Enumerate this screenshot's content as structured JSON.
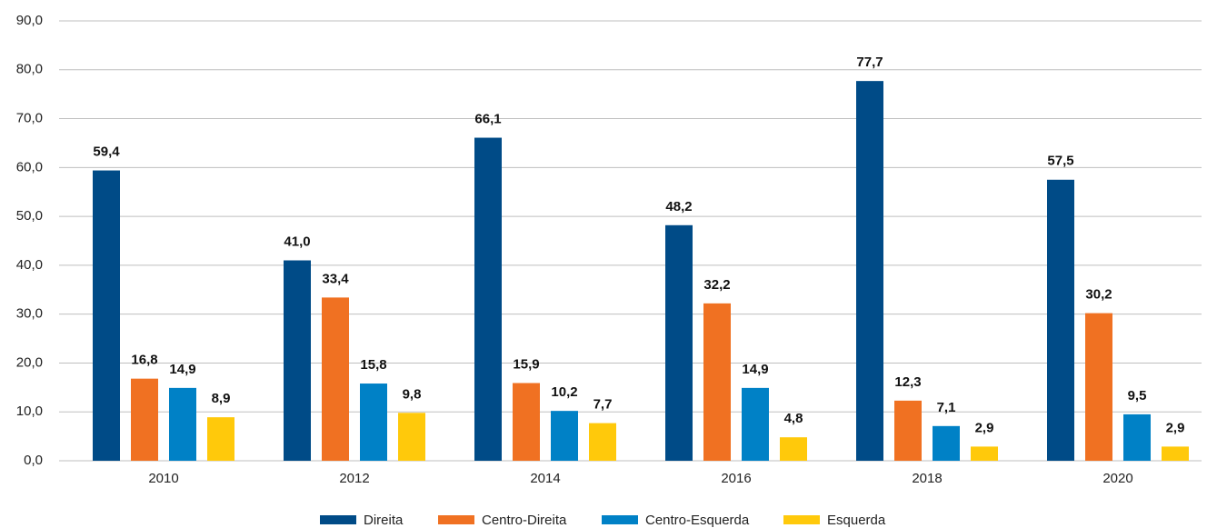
{
  "chart_data": {
    "type": "bar",
    "categories": [
      "2010",
      "2012",
      "2014",
      "2016",
      "2018",
      "2020"
    ],
    "series": [
      {
        "name": "Direita",
        "color": "#004b87",
        "values": [
          59.4,
          41.0,
          66.1,
          48.2,
          77.7,
          57.5
        ],
        "value_labels": [
          "59,4",
          "41,0",
          "66,1",
          "48,2",
          "77,7",
          "57,5"
        ]
      },
      {
        "name": "Centro-Direita",
        "color": "#f07122",
        "values": [
          16.8,
          33.4,
          15.9,
          32.2,
          12.3,
          30.2
        ],
        "value_labels": [
          "16,8",
          "33,4",
          "15,9",
          "32,2",
          "12,3",
          "30,2"
        ]
      },
      {
        "name": "Centro-Esquerda",
        "color": "#0081c6",
        "values": [
          14.9,
          15.8,
          10.2,
          14.9,
          7.1,
          9.5
        ],
        "value_labels": [
          "14,9",
          "15,8",
          "10,2",
          "14,9",
          "7,1",
          "9,5"
        ]
      },
      {
        "name": "Esquerda",
        "color": "#ffc90b",
        "values": [
          8.9,
          9.8,
          7.7,
          4.8,
          2.9,
          2.9
        ],
        "value_labels": [
          "8,9",
          "9,8",
          "7,7",
          "4,8",
          "2,9",
          "2,9"
        ]
      }
    ],
    "ylim": [
      0,
      90
    ],
    "yticks": [
      {
        "value": 0,
        "label": "0,0"
      },
      {
        "value": 10,
        "label": "10,0"
      },
      {
        "value": 20,
        "label": "20,0"
      },
      {
        "value": 30,
        "label": "30,0"
      },
      {
        "value": 40,
        "label": "40,0"
      },
      {
        "value": 50,
        "label": "50,0"
      },
      {
        "value": 60,
        "label": "60,0"
      },
      {
        "value": 70,
        "label": "70,0"
      },
      {
        "value": 80,
        "label": "80,0"
      },
      {
        "value": 90,
        "label": "90,0"
      }
    ],
    "grid": true,
    "legend": "bottom"
  }
}
